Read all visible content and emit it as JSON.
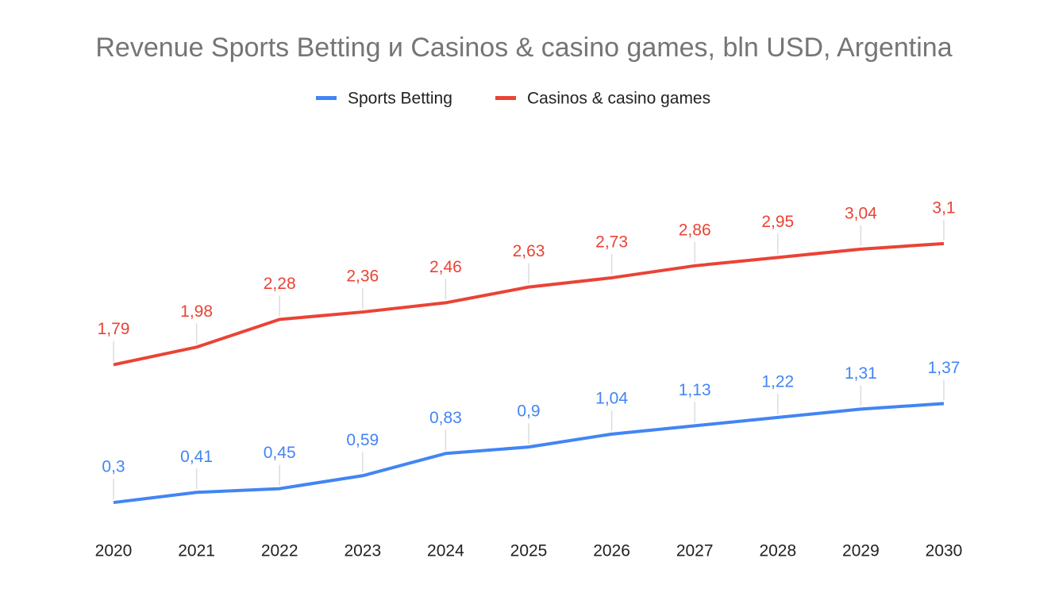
{
  "chart_data": {
    "type": "line",
    "title": "Revenue Sports Betting и Casinos & casino games, bln USD, Argentina",
    "categories": [
      "2020",
      "2021",
      "2022",
      "2023",
      "2024",
      "2025",
      "2026",
      "2027",
      "2028",
      "2029",
      "2030"
    ],
    "series": [
      {
        "name": "Sports Betting",
        "color": "#4285f4",
        "values": [
          0.3,
          0.41,
          0.45,
          0.59,
          0.83,
          0.9,
          1.04,
          1.13,
          1.22,
          1.31,
          1.37
        ],
        "value_labels": [
          "0,3",
          "0,41",
          "0,45",
          "0,59",
          "0,83",
          "0,9",
          "1,04",
          "1,13",
          "1,22",
          "1,31",
          "1,37"
        ]
      },
      {
        "name": "Casinos & casino games",
        "color": "#ea4335",
        "values": [
          1.79,
          1.98,
          2.28,
          2.36,
          2.46,
          2.63,
          2.73,
          2.86,
          2.95,
          3.04,
          3.1
        ],
        "value_labels": [
          "1,79",
          "1,98",
          "2,28",
          "2,36",
          "2,46",
          "2,63",
          "2,73",
          "2,86",
          "2,95",
          "3,04",
          "3,1"
        ]
      }
    ],
    "ylim": [
      0,
      4
    ],
    "legend": "top"
  }
}
